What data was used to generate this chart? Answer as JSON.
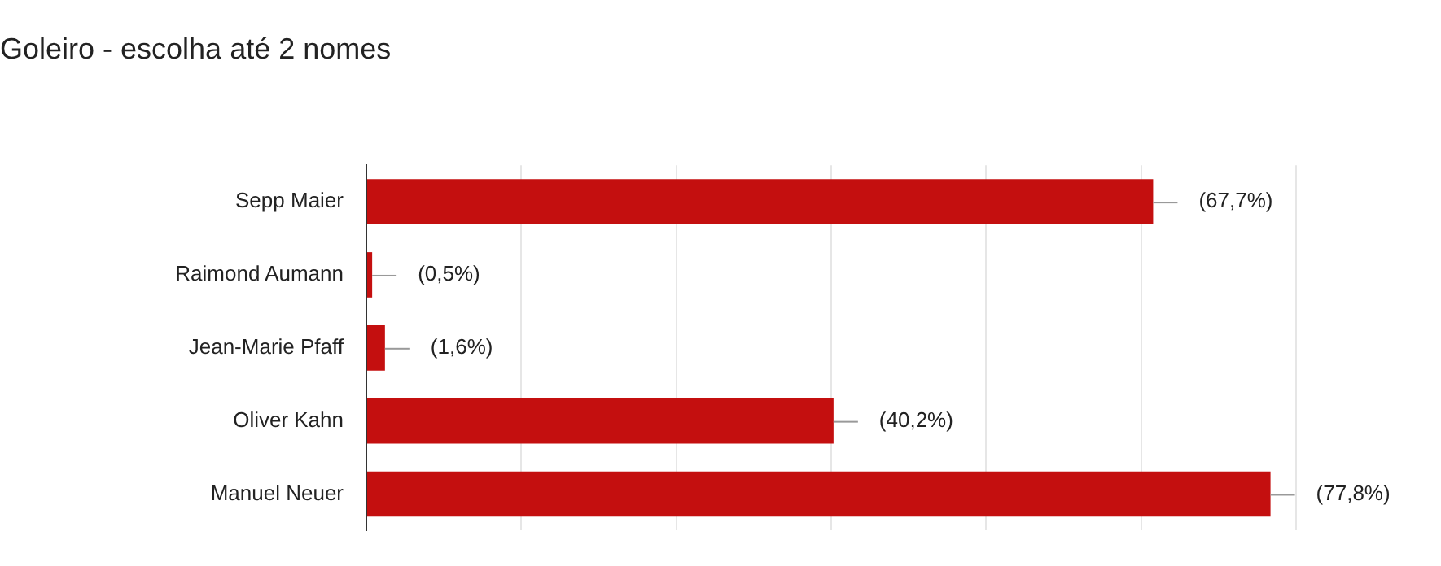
{
  "chart_data": {
    "type": "bar",
    "orientation": "horizontal",
    "title": "Goleiro - escolha até 2 nomes",
    "categories": [
      "Sepp Maier",
      "Raimond Aumann",
      "Jean-Marie Pfaff",
      "Oliver Kahn",
      "Manuel Neuer"
    ],
    "values": [
      67.7,
      0.5,
      1.6,
      40.2,
      77.8
    ],
    "value_labels": [
      "(67,7%)",
      "(0,5%)",
      "(1,6%)",
      "(40,2%)",
      "(77,8%)"
    ],
    "color": "#c40f0f",
    "xlim": [
      0,
      80
    ],
    "xticks": [
      {
        "value": 0,
        "label": null
      },
      {
        "value": 13.333,
        "label": null
      },
      {
        "value": 26.667,
        "label": null
      },
      {
        "value": 40,
        "label": null
      },
      {
        "value": 53.333,
        "label": null
      },
      {
        "value": 66.667,
        "label": null
      },
      {
        "value": 80,
        "label": null
      }
    ],
    "tick_labels": "y",
    "grid": "x",
    "legend": false
  }
}
